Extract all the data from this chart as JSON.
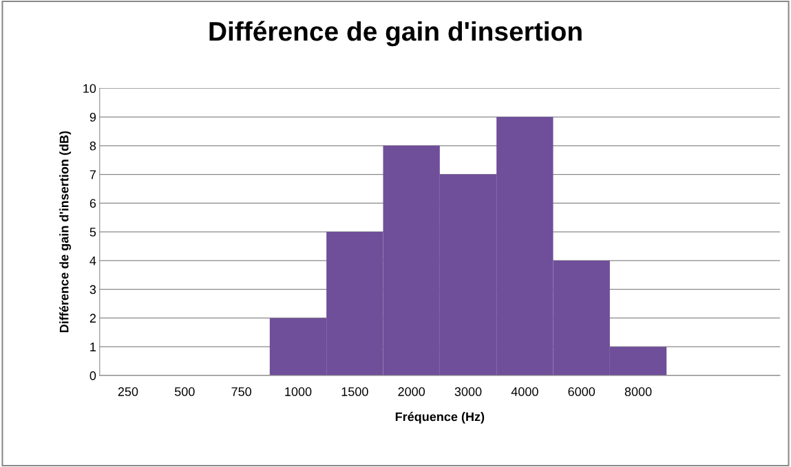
{
  "chart_data": {
    "type": "bar",
    "title": "Différence de gain d'insertion",
    "xlabel": "Fréquence (Hz)",
    "ylabel": "Différence de gain d'insertion (dB)",
    "categories": [
      "250",
      "500",
      "750",
      "1000",
      "1500",
      "2000",
      "3000",
      "4000",
      "6000",
      "8000",
      null,
      null
    ],
    "values": [
      0,
      0,
      0,
      2,
      5,
      8,
      7,
      9,
      4,
      1,
      null,
      null
    ],
    "color": "#6f4e9a",
    "ylim": [
      0,
      10
    ],
    "yticks": [
      0,
      1,
      2,
      3,
      4,
      5,
      6,
      7,
      8,
      9,
      10
    ],
    "grid": "y",
    "legend": false
  }
}
